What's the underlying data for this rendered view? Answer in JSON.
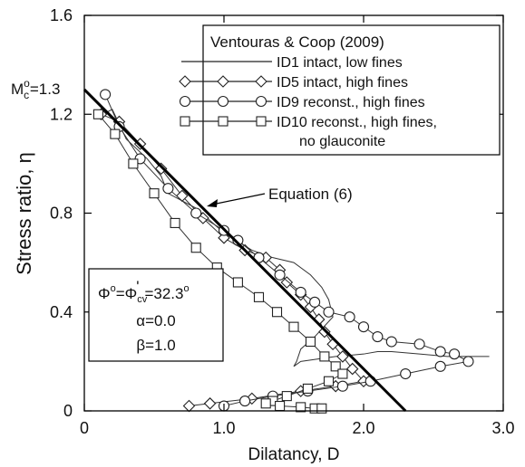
{
  "chart_data": {
    "type": "line",
    "xlabel": "Dilatancy, D",
    "ylabel": "Stress ratio, η",
    "xlim": [
      0,
      3.0
    ],
    "ylim": [
      0,
      1.6
    ],
    "xticks": [
      0,
      1.0,
      2.0,
      3.0
    ],
    "xtick_labels": [
      "0",
      "1.0",
      "2.0",
      "3.0"
    ],
    "yticks": [
      0,
      0.4,
      0.8,
      1.2,
      1.6
    ],
    "ytick_labels": [
      "0",
      "0.4",
      "0.8",
      "1.2",
      "1.6"
    ],
    "grid": false,
    "legend_position": "top-right",
    "legend_title": "Ventouras & Coop (2009)",
    "mc_label": "M",
    "mc_sub": "c",
    "mc_sup": "o",
    "mc_value": "=1.3",
    "equation_label": "Equation (6)",
    "params": {
      "phi_a": "Φ",
      "phi_sup": "o",
      "phi_b": "=Φ",
      "phi_sub": "cv",
      "phi_prime": "'",
      "phi_val": "=32.3",
      "phi_val_sup": "o",
      "alpha": "α=0.0",
      "beta": "β=1.0"
    },
    "equation_line": {
      "x": [
        0,
        2.3
      ],
      "y": [
        1.3,
        0
      ]
    },
    "series": [
      {
        "name": "ID1 intact, low fines",
        "marker": "none",
        "x": [
          0.1,
          0.2,
          0.3,
          0.45,
          0.55,
          0.6,
          0.8,
          1.0,
          1.2,
          1.35,
          1.5,
          1.62,
          1.7,
          1.75,
          1.78,
          1.65,
          1.55,
          1.52,
          1.5,
          1.55,
          1.8,
          2.0,
          2.1,
          2.2,
          2.4,
          2.6,
          2.8,
          2.9
        ],
        "y": [
          1.19,
          1.22,
          1.1,
          1.02,
          0.95,
          0.88,
          0.82,
          0.72,
          0.65,
          0.62,
          0.6,
          0.55,
          0.5,
          0.45,
          0.38,
          0.3,
          0.25,
          0.2,
          0.18,
          0.2,
          0.22,
          0.23,
          0.24,
          0.24,
          0.23,
          0.22,
          0.22,
          0.22
        ]
      },
      {
        "name": "ID5 intact, high fines",
        "marker": "diamond",
        "x": [
          0.12,
          0.25,
          0.4,
          0.55,
          0.7,
          0.85,
          1.0,
          1.15,
          1.3,
          1.4,
          1.45,
          1.55,
          1.62,
          1.68,
          1.72,
          1.78,
          1.85,
          1.92,
          2.0,
          1.8,
          1.55,
          1.2,
          0.9,
          0.75
        ],
        "y": [
          1.2,
          1.17,
          1.08,
          0.98,
          0.87,
          0.78,
          0.7,
          0.65,
          0.62,
          0.57,
          0.52,
          0.47,
          0.42,
          0.37,
          0.32,
          0.27,
          0.22,
          0.17,
          0.12,
          0.1,
          0.08,
          0.05,
          0.03,
          0.02
        ]
      },
      {
        "name": "ID9 reconst., high fines",
        "marker": "circle",
        "x": [
          0.15,
          0.25,
          0.4,
          0.6,
          0.8,
          1.0,
          1.1,
          1.25,
          1.4,
          1.55,
          1.65,
          1.75,
          1.9,
          2.0,
          2.1,
          2.2,
          2.4,
          2.55,
          2.65,
          2.75,
          2.55,
          2.3,
          2.05,
          1.85,
          1.6,
          1.35,
          1.15,
          1.0
        ],
        "y": [
          1.28,
          1.15,
          1.02,
          0.9,
          0.8,
          0.73,
          0.69,
          0.62,
          0.55,
          0.48,
          0.44,
          0.4,
          0.38,
          0.34,
          0.3,
          0.28,
          0.27,
          0.24,
          0.23,
          0.2,
          0.18,
          0.15,
          0.12,
          0.1,
          0.08,
          0.06,
          0.04,
          0.02
        ]
      },
      {
        "name": "ID10 reconst., high fines,",
        "name_line2": "no glauconite",
        "marker": "square",
        "x": [
          0.1,
          0.22,
          0.35,
          0.5,
          0.65,
          0.8,
          0.95,
          1.1,
          1.25,
          1.38,
          1.5,
          1.62,
          1.72,
          1.8,
          1.85,
          1.75,
          1.6,
          1.45,
          1.35,
          1.3,
          1.4,
          1.55,
          1.65,
          1.7
        ],
        "y": [
          1.2,
          1.12,
          1.0,
          0.88,
          0.76,
          0.66,
          0.58,
          0.52,
          0.46,
          0.4,
          0.34,
          0.28,
          0.22,
          0.18,
          0.15,
          0.12,
          0.09,
          0.06,
          0.04,
          0.03,
          0.02,
          0.015,
          0.01,
          0.01
        ]
      }
    ]
  }
}
